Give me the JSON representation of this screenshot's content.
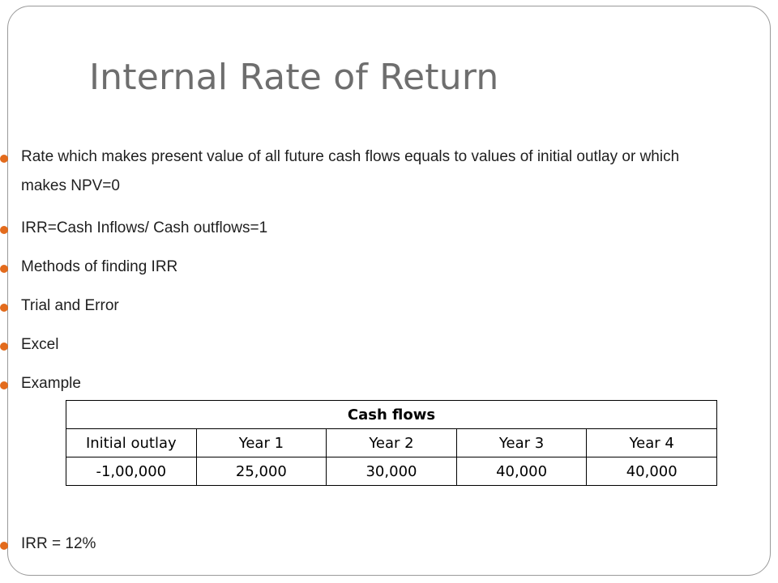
{
  "title": "Internal Rate of Return",
  "bullets": [
    "Rate which makes present value of all future cash flows equals to values of initial outlay or which makes NPV=0",
    "IRR=Cash Inflows/ Cash outflows=1",
    "Methods of finding IRR",
    "Trial and Error",
    "Excel",
    "Example"
  ],
  "table": {
    "caption": "Cash flows",
    "headers": [
      "Initial outlay",
      "Year 1",
      "Year 2",
      "Year 3",
      "Year 4"
    ],
    "values": [
      "-1,00,000",
      "25,000",
      "30,000",
      "40,000",
      "40,000"
    ]
  },
  "result": "IRR = 12%",
  "colors": {
    "bullet": "#e36b1c",
    "title": "#6e6e6e"
  }
}
